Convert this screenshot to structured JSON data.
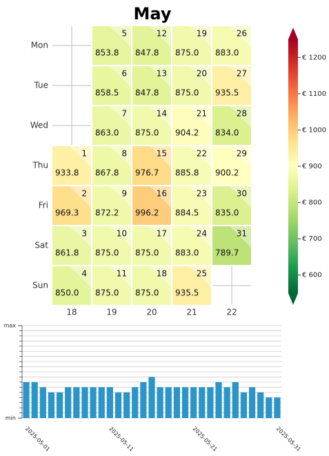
{
  "chart_data": [
    {
      "type": "calendar_heatmap",
      "title": "May",
      "rows": [
        "Mon",
        "Tue",
        "Wed",
        "Thu",
        "Fri",
        "Sat",
        "Sun"
      ],
      "columns": [
        18,
        19,
        20,
        21,
        22
      ],
      "start_weekday": "Thu",
      "days": [
        1,
        2,
        3,
        4,
        5,
        6,
        7,
        8,
        9,
        10,
        11,
        12,
        13,
        14,
        15,
        16,
        17,
        18,
        19,
        20,
        21,
        22,
        23,
        24,
        25,
        26,
        27,
        28,
        29,
        30,
        31
      ],
      "values": [
        933.8,
        969.3,
        861.8,
        850,
        853.8,
        858.5,
        863,
        867.8,
        872.2,
        875,
        875,
        847.8,
        847.8,
        875,
        976.7,
        996.2,
        875,
        875,
        875,
        875,
        904.2,
        885.8,
        884.5,
        883,
        935.5,
        883,
        935.5,
        834,
        900.2,
        835,
        789.7
      ],
      "value_labels": [
        "933.8",
        "969.3",
        "861.8",
        "850.0",
        "853.8",
        "858.5",
        "863.0",
        "867.8",
        "872.2",
        "875.0",
        "875.0",
        "847.8",
        "847.8",
        "875.0",
        "976.7",
        "996.2",
        "875.0",
        "875.0",
        "875.0",
        "875.0",
        "904.2",
        "885.8",
        "884.5",
        "883.0",
        "935.5",
        "883.0",
        "935.5",
        "834.0",
        "900.2",
        "835.0",
        "789.7"
      ],
      "colormap": [
        "#006837",
        "#1a9850",
        "#66bd63",
        "#a6d96a",
        "#d9ef8b",
        "#ffffbf",
        "#fee08b",
        "#fdae61",
        "#f46d43",
        "#d73027",
        "#a50026"
      ],
      "clim": [
        550,
        1250
      ],
      "cticks": [
        {
          "value": 600,
          "label": "€ 600"
        },
        {
          "value": 700,
          "label": "€ 700"
        },
        {
          "value": 800,
          "label": "€ 800"
        },
        {
          "value": 900,
          "label": "€ 900"
        },
        {
          "value": 1000,
          "label": "€ 1000"
        },
        {
          "value": 1100,
          "label": "€ 1100"
        },
        {
          "value": 1200,
          "label": "€ 1200"
        }
      ]
    },
    {
      "type": "bar",
      "color": "#2b94c9",
      "categories": [
        "2025-05-01",
        null,
        null,
        null,
        null,
        null,
        null,
        null,
        null,
        null,
        "2025-05-11",
        null,
        null,
        null,
        null,
        null,
        null,
        null,
        null,
        null,
        "2025-05-21",
        null,
        null,
        null,
        null,
        null,
        null,
        null,
        null,
        null,
        "2025-05-31"
      ],
      "values": [
        7,
        7,
        6,
        5,
        5,
        6,
        6,
        6,
        6,
        6,
        6,
        5,
        5,
        6,
        7,
        8,
        6,
        6,
        6,
        6,
        6,
        6,
        6,
        7,
        6,
        7,
        5,
        6,
        5,
        4,
        4
      ],
      "ylim": [
        0,
        18
      ],
      "yticks": [
        {
          "value": 0,
          "label": "min"
        },
        {
          "value": 18,
          "label": "max"
        }
      ],
      "yminor_ticks": [
        1,
        2,
        3,
        4,
        5,
        6,
        7,
        8,
        9,
        10,
        11,
        12,
        13,
        14,
        15,
        16,
        17
      ],
      "grid": true
    }
  ]
}
